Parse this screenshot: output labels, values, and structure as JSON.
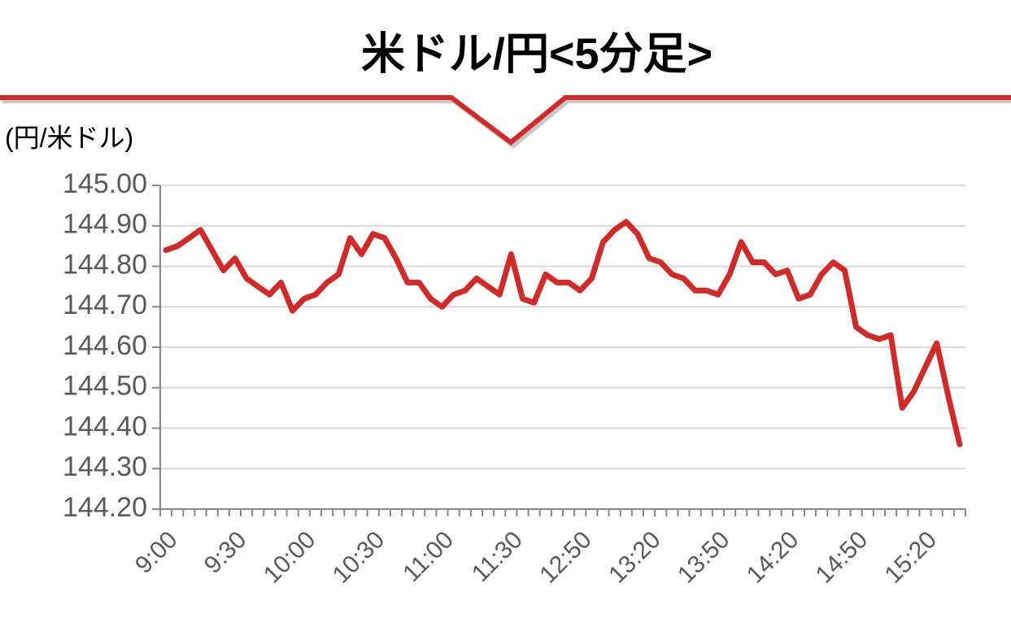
{
  "chart_data": {
    "type": "line",
    "title": "米ドル/円<5分足>",
    "y_axis_label": "(円/米ドル)",
    "categories": [
      "9:00",
      null,
      null,
      null,
      null,
      null,
      "9:30",
      null,
      null,
      null,
      null,
      null,
      "10:00",
      null,
      null,
      null,
      null,
      null,
      "10:30",
      null,
      null,
      null,
      null,
      null,
      "11:00",
      null,
      null,
      null,
      null,
      null,
      "11:30",
      null,
      null,
      null,
      null,
      null,
      "12:50",
      null,
      null,
      null,
      null,
      null,
      "13:20",
      null,
      null,
      null,
      null,
      null,
      "13:50",
      null,
      null,
      null,
      null,
      null,
      "14:20",
      null,
      null,
      null,
      null,
      null,
      "14:50",
      null,
      null,
      null,
      null,
      null,
      "15:20",
      null,
      null,
      null
    ],
    "values": [
      144.84,
      144.85,
      144.87,
      144.89,
      144.84,
      144.79,
      144.82,
      144.77,
      144.75,
      144.73,
      144.76,
      144.69,
      144.72,
      144.73,
      144.76,
      144.78,
      144.87,
      144.83,
      144.88,
      144.87,
      144.82,
      144.76,
      144.76,
      144.72,
      144.7,
      144.73,
      144.74,
      144.77,
      144.75,
      144.73,
      144.83,
      144.72,
      144.71,
      144.78,
      144.76,
      144.76,
      144.74,
      144.77,
      144.86,
      144.89,
      144.91,
      144.88,
      144.82,
      144.81,
      144.78,
      144.77,
      144.74,
      144.74,
      144.73,
      144.78,
      144.86,
      144.81,
      144.81,
      144.78,
      144.79,
      144.72,
      144.73,
      144.78,
      144.81,
      144.79,
      144.65,
      144.63,
      144.62,
      144.63,
      144.45,
      144.49,
      144.55,
      144.61,
      144.48,
      144.36
    ],
    "color": "#d42a27",
    "ylim": [
      144.2,
      145.0
    ],
    "yticks": [
      {
        "value": 144.2,
        "label": "144.20"
      },
      {
        "value": 144.3,
        "label": "144.30"
      },
      {
        "value": 144.4,
        "label": "144.40"
      },
      {
        "value": 144.5,
        "label": "144.50"
      },
      {
        "value": 144.6,
        "label": "144.60"
      },
      {
        "value": 144.7,
        "label": "144.70"
      },
      {
        "value": 144.8,
        "label": "144.80"
      },
      {
        "value": 144.9,
        "label": "144.90"
      },
      {
        "value": 145.0,
        "label": "145.00"
      }
    ],
    "grid": true
  }
}
